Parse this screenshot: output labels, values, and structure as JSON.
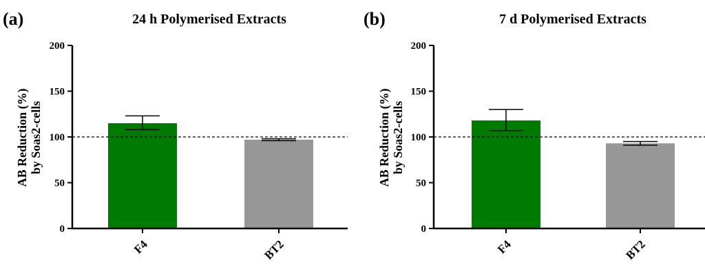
{
  "chart_data": [
    {
      "type": "bar",
      "panel_label": "(a)",
      "title": "24 h Polymerised Extracts",
      "ylabel_line1": "AB  Reduction (%)",
      "ylabel_line2": "by Soas2-cells",
      "categories": [
        "F4",
        "BT2"
      ],
      "values": [
        115,
        97
      ],
      "error_upper": [
        123,
        98
      ],
      "error_lower": [
        108,
        96
      ],
      "colors": [
        "#007a00",
        "#979797"
      ],
      "reference_line": 100,
      "ylim": [
        0,
        200
      ],
      "yticks": [
        0,
        50,
        100,
        150,
        200
      ],
      "grid": false
    },
    {
      "type": "bar",
      "panel_label": "(b)",
      "title": "7 d Polymerised Extracts",
      "ylabel_line1": "AB  Reduction (%)",
      "ylabel_line2": "by Soas2-cells",
      "categories": [
        "F4",
        "BT2"
      ],
      "values": [
        118,
        93
      ],
      "error_upper": [
        130,
        95
      ],
      "error_lower": [
        107,
        91
      ],
      "colors": [
        "#007a00",
        "#979797"
      ],
      "reference_line": 100,
      "ylim": [
        0,
        200
      ],
      "yticks": [
        0,
        50,
        100,
        150,
        200
      ],
      "grid": false
    }
  ]
}
